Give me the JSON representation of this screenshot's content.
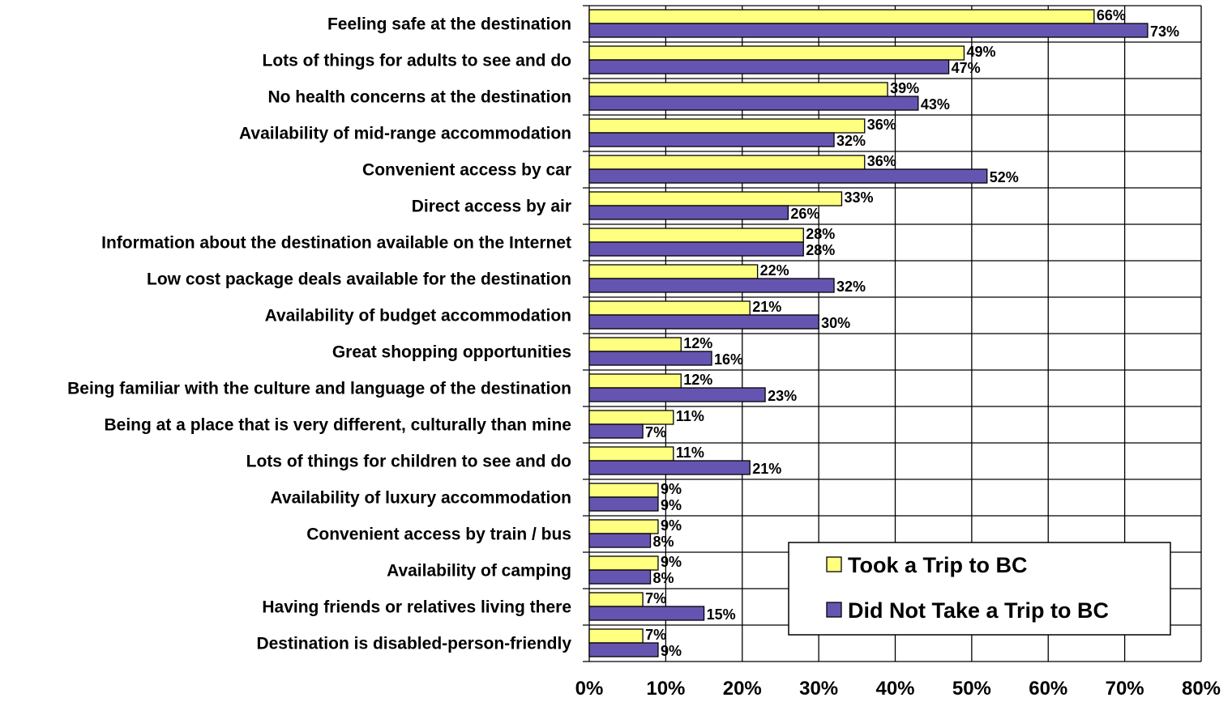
{
  "chart_data": {
    "type": "bar",
    "orientation": "horizontal",
    "categories": [
      "Feeling safe at the destination",
      "Lots of things for adults to see and do",
      "No health concerns at the destination",
      "Availability of mid-range accommodation",
      "Convenient access by car",
      "Direct access by air",
      "Information about the destination available on the Internet",
      "Low cost package deals available for the destination",
      "Availability of budget accommodation",
      "Great shopping opportunities",
      "Being familiar with the culture and language of the destination",
      "Being at a place that is very different, culturally than mine",
      "Lots of things for children to see and do",
      "Availability of luxury accommodation",
      "Convenient access by train / bus",
      "Availability of camping",
      "Having friends or relatives living there",
      "Destination is disabled-person-friendly"
    ],
    "series": [
      {
        "name": "Took a Trip to BC",
        "color": "#FFFF80",
        "values": [
          66,
          49,
          39,
          36,
          36,
          33,
          28,
          22,
          21,
          12,
          12,
          11,
          11,
          9,
          9,
          9,
          7,
          7
        ]
      },
      {
        "name": "Did Not Take a Trip to BC",
        "color": "#6655B0",
        "values": [
          73,
          47,
          43,
          32,
          52,
          26,
          28,
          32,
          30,
          16,
          23,
          7,
          21,
          9,
          8,
          8,
          15,
          9
        ]
      }
    ],
    "xlim": [
      0,
      80
    ],
    "xticks": [
      0,
      10,
      20,
      30,
      40,
      50,
      60,
      70,
      80
    ],
    "tick_suffix": "%",
    "value_suffix": "%",
    "grid": true,
    "legend_position": "bottom-right",
    "title": "",
    "xlabel": "",
    "ylabel": ""
  }
}
